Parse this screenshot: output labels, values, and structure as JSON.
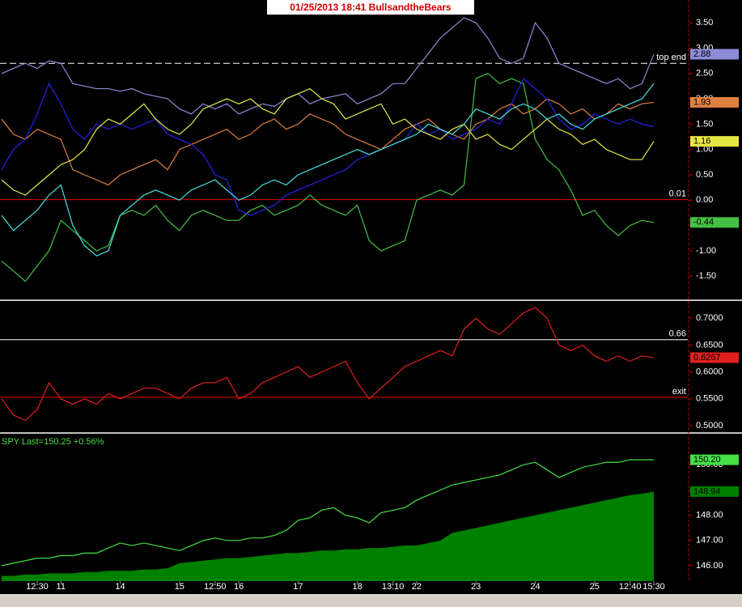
{
  "chart_data": [
    {
      "type": "line",
      "title": "01/25/2013  18:41  BullsandtheBears",
      "ylim": [
        -1.96,
        3.95
      ],
      "yticks": [
        {
          "value": 3.5,
          "label": "3.50"
        },
        {
          "value": 3,
          "label": "3.00"
        },
        {
          "value": 2.5,
          "label": "2.50"
        },
        {
          "value": 2,
          "label": "2.00"
        },
        {
          "value": 1.5,
          "label": "1.50"
        },
        {
          "value": 1,
          "label": "1.00"
        },
        {
          "value": 0.5,
          "label": "0.50"
        },
        {
          "value": 0,
          "label": "0.00"
        },
        {
          "value": -0.5,
          "label": "-0.50"
        },
        {
          "value": -1,
          "label": "-1.00"
        },
        {
          "value": -1.5,
          "label": "-1.50"
        }
      ],
      "levels": [
        {
          "value": 2.7,
          "label": "top end",
          "color": "#ffffff",
          "dash": true
        },
        {
          "value": 0.01,
          "color": "#e00000"
        }
      ],
      "series": [
        {
          "color": "#8c8cd8",
          "end_label": "2.88",
          "values": [
            2.5,
            2.6,
            2.7,
            2.6,
            2.75,
            2.7,
            2.3,
            2.25,
            2.2,
            2.2,
            2.15,
            2.2,
            2.1,
            2.05,
            2.0,
            1.8,
            1.7,
            1.9,
            1.8,
            1.9,
            1.7,
            1.8,
            1.9,
            1.85,
            2.0,
            2.1,
            1.9,
            2.0,
            2.05,
            2.1,
            1.9,
            2.0,
            2.1,
            2.3,
            2.3,
            2.6,
            2.9,
            3.2,
            3.4,
            3.6,
            3.5,
            3.2,
            2.8,
            2.7,
            2.8,
            3.5,
            3.2,
            2.7,
            2.6,
            2.5,
            2.4,
            2.3,
            2.4,
            2.2,
            2.3,
            2.88
          ]
        },
        {
          "color": "#44c044",
          "end_label": "-0.44",
          "values": [
            -1.2,
            -1.4,
            -1.6,
            -1.3,
            -1.0,
            -0.4,
            -0.6,
            -0.8,
            -1.0,
            -0.9,
            -0.3,
            -0.2,
            -0.3,
            -0.1,
            -0.4,
            -0.6,
            -0.3,
            -0.2,
            -0.3,
            -0.4,
            -0.4,
            -0.2,
            -0.1,
            -0.3,
            -0.2,
            -0.1,
            0.1,
            -0.1,
            -0.2,
            -0.3,
            -0.1,
            -0.8,
            -1.0,
            -0.9,
            -0.8,
            0.0,
            0.1,
            0.2,
            0.1,
            0.3,
            2.4,
            2.5,
            2.3,
            2.4,
            2.3,
            1.2,
            0.8,
            0.6,
            0.2,
            -0.3,
            -0.2,
            -0.5,
            -0.7,
            -0.5,
            -0.4,
            -0.44
          ]
        },
        {
          "color": "#e08040",
          "end_label": "1.93",
          "values": [
            1.6,
            1.3,
            1.2,
            1.4,
            1.3,
            1.2,
            0.6,
            0.5,
            0.4,
            0.3,
            0.5,
            0.6,
            0.7,
            0.8,
            0.6,
            1.0,
            1.1,
            1.2,
            1.3,
            1.4,
            1.2,
            1.3,
            1.5,
            1.6,
            1.4,
            1.5,
            1.7,
            1.6,
            1.5,
            1.3,
            1.2,
            1.1,
            1.0,
            1.2,
            1.4,
            1.5,
            1.6,
            1.4,
            1.3,
            1.2,
            1.5,
            1.6,
            1.8,
            1.9,
            1.7,
            1.8,
            2.0,
            1.9,
            1.7,
            1.8,
            1.6,
            1.7,
            1.9,
            1.8,
            1.9,
            1.93
          ]
        },
        {
          "color": "#2424e8",
          "values": [
            0.6,
            1.0,
            1.2,
            1.7,
            2.3,
            1.9,
            1.4,
            1.2,
            1.5,
            1.4,
            1.5,
            1.4,
            1.5,
            1.6,
            1.3,
            1.2,
            1.1,
            0.9,
            0.5,
            0.4,
            -0.2,
            -0.3,
            -0.2,
            -0.1,
            0.1,
            0.2,
            0.3,
            0.4,
            0.5,
            0.6,
            0.8,
            0.9,
            1.0,
            1.1,
            1.2,
            1.5,
            1.3,
            1.4,
            1.2,
            1.3,
            1.4,
            1.6,
            1.5,
            1.9,
            2.4,
            2.2,
            2.0,
            1.6,
            1.4,
            1.5,
            1.7,
            1.6,
            1.5,
            1.6,
            1.5,
            1.45
          ]
        },
        {
          "color": "#e8e844",
          "end_label": "1.16",
          "values": [
            0.4,
            0.2,
            0.1,
            0.3,
            0.5,
            0.7,
            0.8,
            1.0,
            1.4,
            1.6,
            1.5,
            1.7,
            1.9,
            1.6,
            1.4,
            1.3,
            1.5,
            1.8,
            1.9,
            2.0,
            1.9,
            2.0,
            1.8,
            1.7,
            2.0,
            2.1,
            2.2,
            2.0,
            1.9,
            1.6,
            1.7,
            1.8,
            1.9,
            1.5,
            1.6,
            1.4,
            1.3,
            1.2,
            1.4,
            1.5,
            1.2,
            1.3,
            1.1,
            1.0,
            1.2,
            1.4,
            1.6,
            1.4,
            1.3,
            1.1,
            1.2,
            1.0,
            0.9,
            0.8,
            0.8,
            1.16
          ]
        },
        {
          "color": "#44e0e0",
          "values": [
            -0.3,
            -0.6,
            -0.4,
            -0.2,
            0.1,
            0.3,
            -0.5,
            -0.9,
            -1.1,
            -1.0,
            -0.3,
            -0.1,
            0.1,
            0.2,
            0.1,
            0.0,
            0.2,
            0.3,
            0.4,
            0.2,
            0.0,
            0.1,
            0.3,
            0.4,
            0.3,
            0.5,
            0.6,
            0.7,
            0.8,
            0.9,
            1.0,
            0.9,
            1.0,
            1.1,
            1.2,
            1.3,
            1.5,
            1.4,
            1.3,
            1.5,
            1.8,
            1.7,
            1.6,
            1.8,
            1.9,
            1.8,
            1.6,
            1.7,
            1.5,
            1.4,
            1.6,
            1.7,
            1.8,
            1.9,
            2.0,
            2.3
          ]
        }
      ]
    },
    {
      "type": "line",
      "ylim": [
        0.488,
        0.732
      ],
      "yticks": [
        {
          "value": 0.7,
          "label": "0.7000"
        },
        {
          "value": 0.65,
          "label": "0.6500"
        },
        {
          "value": 0.6,
          "label": "0.6000"
        },
        {
          "value": 0.55,
          "label": "0.5500"
        },
        {
          "value": 0.5,
          "label": "0.5000"
        }
      ],
      "levels": [
        {
          "value": 0.66,
          "color": "#ffffff"
        },
        {
          "value": 0.553,
          "label": "exit",
          "color": "#e00000"
        }
      ],
      "series": [
        {
          "color": "#e02020",
          "end_label": "0.6267",
          "values": [
            0.55,
            0.52,
            0.51,
            0.53,
            0.58,
            0.55,
            0.54,
            0.55,
            0.54,
            0.56,
            0.55,
            0.56,
            0.57,
            0.57,
            0.56,
            0.55,
            0.57,
            0.58,
            0.58,
            0.59,
            0.55,
            0.56,
            0.58,
            0.59,
            0.6,
            0.61,
            0.59,
            0.6,
            0.61,
            0.62,
            0.58,
            0.55,
            0.57,
            0.59,
            0.61,
            0.62,
            0.63,
            0.64,
            0.63,
            0.68,
            0.7,
            0.68,
            0.67,
            0.69,
            0.71,
            0.72,
            0.7,
            0.65,
            0.64,
            0.65,
            0.63,
            0.62,
            0.63,
            0.62,
            0.63,
            0.6267
          ]
        }
      ]
    },
    {
      "type": "line",
      "subtitle": "SPY  Last=150.25  +0.56%",
      "ylim": [
        145.39,
        151.23
      ],
      "yticks": [
        {
          "value": 150,
          "label": "150.00"
        },
        {
          "value": 149,
          "label": "149.00"
        },
        {
          "value": 148,
          "label": "148.00"
        },
        {
          "value": 147,
          "label": "147.00"
        },
        {
          "value": 146,
          "label": "146.00"
        }
      ],
      "categories": [
        null,
        null,
        null,
        "12:30",
        null,
        "11",
        null,
        null,
        null,
        null,
        "14",
        null,
        null,
        null,
        null,
        "15",
        null,
        null,
        "12:50",
        null,
        "16",
        null,
        null,
        null,
        null,
        "17",
        null,
        null,
        null,
        null,
        "18",
        null,
        null,
        "13:10",
        null,
        "22",
        null,
        null,
        null,
        null,
        "23",
        null,
        null,
        null,
        null,
        "24",
        null,
        null,
        null,
        null,
        "25",
        null,
        null,
        "12:40",
        null,
        "15:30"
      ],
      "series": [
        {
          "style": "area",
          "color": "#008000",
          "end_label": "148.94",
          "values": [
            145.6,
            145.6,
            145.65,
            145.65,
            145.7,
            145.7,
            145.7,
            145.75,
            145.75,
            145.8,
            145.8,
            145.8,
            145.85,
            145.85,
            145.9,
            146.1,
            146.15,
            146.2,
            146.25,
            146.3,
            146.3,
            146.35,
            146.4,
            146.45,
            146.5,
            146.5,
            146.55,
            146.6,
            146.6,
            146.65,
            146.65,
            146.7,
            146.7,
            146.75,
            146.8,
            146.8,
            146.9,
            147.0,
            147.3,
            147.4,
            147.5,
            147.6,
            147.7,
            147.8,
            147.9,
            148.0,
            148.1,
            148.2,
            148.3,
            148.4,
            148.5,
            148.6,
            148.7,
            148.8,
            148.85,
            148.94
          ]
        },
        {
          "style": "line",
          "color": "#44e044",
          "end_label": "150.20",
          "values": [
            146.0,
            146.1,
            146.2,
            146.3,
            146.3,
            146.4,
            146.4,
            146.5,
            146.5,
            146.7,
            146.9,
            146.8,
            146.9,
            146.8,
            146.7,
            146.6,
            146.8,
            147.0,
            147.1,
            147.0,
            147.0,
            147.1,
            147.1,
            147.2,
            147.4,
            147.8,
            147.9,
            148.2,
            148.3,
            148.0,
            147.9,
            147.7,
            148.1,
            148.2,
            148.3,
            148.6,
            148.8,
            149.0,
            149.2,
            149.3,
            149.4,
            149.5,
            149.6,
            149.8,
            150.0,
            150.1,
            149.8,
            149.5,
            149.7,
            149.9,
            150.0,
            150.1,
            150.1,
            150.2,
            150.2,
            150.2
          ]
        }
      ]
    }
  ]
}
